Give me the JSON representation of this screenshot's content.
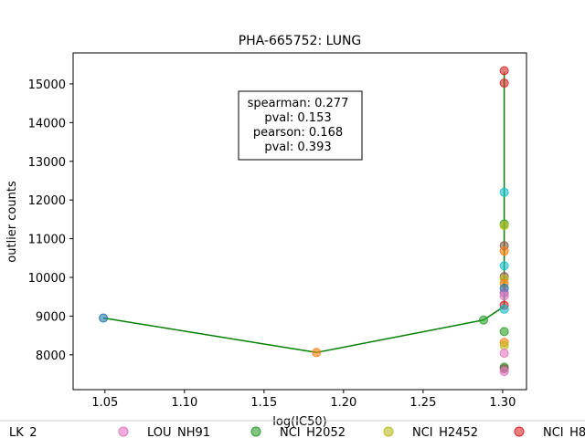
{
  "chart_data": {
    "type": "scatter",
    "title": "PHA-665752: LUNG",
    "xlabel": "log(IC50)",
    "ylabel": "outlier counts",
    "xlim": [
      1.03,
      1.315
    ],
    "ylim": [
      7100,
      15800
    ],
    "xticks": [
      1.05,
      1.1,
      1.15,
      1.2,
      1.25,
      1.3
    ],
    "xtick_labels": [
      "1.05",
      "1.10",
      "1.15",
      "1.20",
      "1.25",
      "1.30"
    ],
    "yticks": [
      8000,
      9000,
      10000,
      11000,
      12000,
      13000,
      14000,
      15000
    ],
    "ytick_labels": [
      "8000",
      "9000",
      "10000",
      "11000",
      "12000",
      "13000",
      "14000",
      "15000"
    ],
    "stats_box": [
      "spearman: 0.277",
      "pval: 0.153",
      "pearson: 0.168",
      "pval: 0.393"
    ],
    "points": [
      {
        "x": 1.049,
        "y": 8950,
        "color": "#1f77b4"
      },
      {
        "x": 1.183,
        "y": 8060,
        "color": "#ff7f0e"
      },
      {
        "x": 1.288,
        "y": 8900,
        "color": "#2ca02c"
      },
      {
        "x": 1.301,
        "y": 15340,
        "color": "#d62728"
      },
      {
        "x": 1.301,
        "y": 15020,
        "color": "#d62728"
      },
      {
        "x": 1.301,
        "y": 12200,
        "color": "#17becf"
      },
      {
        "x": 1.301,
        "y": 11380,
        "color": "#2ca02c"
      },
      {
        "x": 1.301,
        "y": 11340,
        "color": "#bcbd22"
      },
      {
        "x": 1.301,
        "y": 10820,
        "color": "#8c564b"
      },
      {
        "x": 1.301,
        "y": 10680,
        "color": "#ff7f0e"
      },
      {
        "x": 1.301,
        "y": 10300,
        "color": "#17becf"
      },
      {
        "x": 1.301,
        "y": 10020,
        "color": "#8c564b"
      },
      {
        "x": 1.301,
        "y": 9960,
        "color": "#bcbd22"
      },
      {
        "x": 1.301,
        "y": 9840,
        "color": "#ff7f0e"
      },
      {
        "x": 1.301,
        "y": 9720,
        "color": "#1f77b4"
      },
      {
        "x": 1.301,
        "y": 9600,
        "color": "#9467bd"
      },
      {
        "x": 1.301,
        "y": 9520,
        "color": "#e377c2"
      },
      {
        "x": 1.301,
        "y": 9280,
        "color": "#d62728"
      },
      {
        "x": 1.301,
        "y": 9180,
        "color": "#17becf"
      },
      {
        "x": 1.301,
        "y": 8600,
        "color": "#2ca02c"
      },
      {
        "x": 1.301,
        "y": 8320,
        "color": "#ff7f0e"
      },
      {
        "x": 1.301,
        "y": 8240,
        "color": "#bcbd22"
      },
      {
        "x": 1.301,
        "y": 8040,
        "color": "#e377c2"
      },
      {
        "x": 1.301,
        "y": 7680,
        "color": "#2ca02c"
      },
      {
        "x": 1.301,
        "y": 7640,
        "color": "#8c564b"
      },
      {
        "x": 1.301,
        "y": 7570,
        "color": "#e377c2"
      }
    ],
    "line_points": [
      {
        "x": 1.049,
        "y": 8950
      },
      {
        "x": 1.183,
        "y": 8060
      },
      {
        "x": 1.288,
        "y": 8900
      },
      {
        "x": 1.301,
        "y": 9250
      },
      {
        "x": 1.301,
        "y": 15300
      }
    ],
    "line_color": "#008000",
    "legend": [
      {
        "label": "LK_2",
        "color": "#9467bd"
      },
      {
        "label": "LOU_NH91",
        "color": "#e377c2"
      },
      {
        "label": "NCI_H2052",
        "color": "#2ca02c"
      },
      {
        "label": "NCI_H2452",
        "color": "#bcbd22"
      },
      {
        "label": "NCI_H8",
        "color": "#d62728"
      }
    ],
    "legend_position": "bottom"
  }
}
